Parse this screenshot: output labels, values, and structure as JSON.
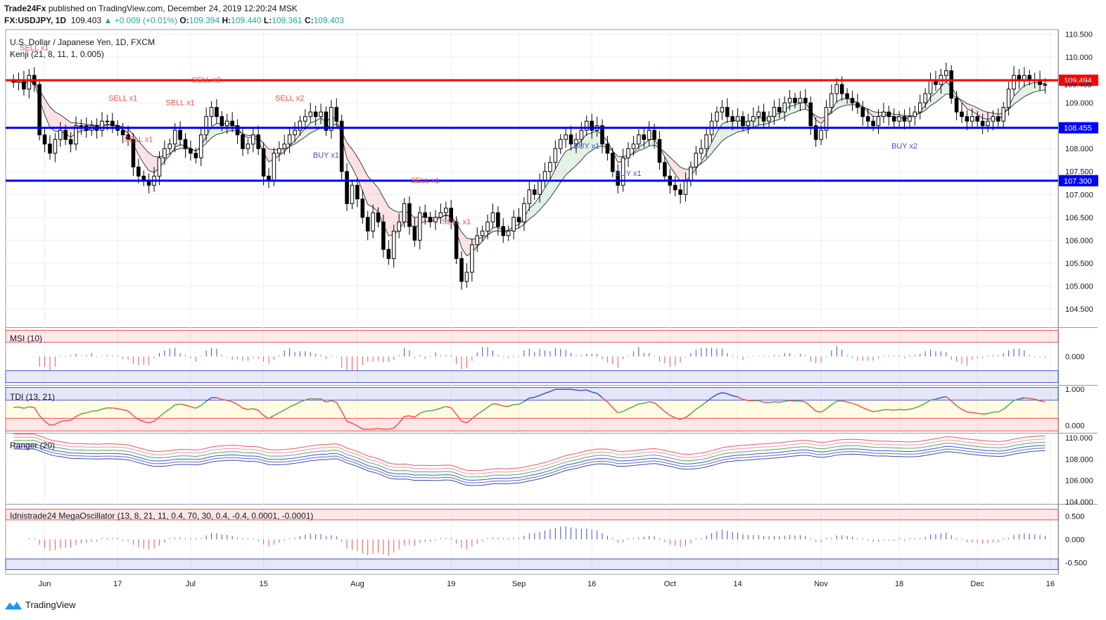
{
  "header": {
    "publisher": "Trade24Fx",
    "published_text": "published on TradingView.com, December 24, 2019 12:20:24 MSK",
    "symbol": "FX:USDJPY, 1D",
    "last": "109.403",
    "change": "▲ +0.009 (+0.01%)",
    "o_label": "O:",
    "o": "109.394",
    "h_label": "H:",
    "h": "109.440",
    "l_label": "L:",
    "l": "109.361",
    "c_label": "C:",
    "c": "109.403"
  },
  "footer": {
    "brand": "TradingView"
  },
  "colors": {
    "up": "#ffffff",
    "down": "#000000",
    "support": "#0000ff",
    "resistance": "#ff0000",
    "sell": "#ef5350",
    "buy": "#3f51d6"
  },
  "chart_data": [
    {
      "type": "candlestick",
      "title": "U.S. Dollar / Japanese Yen, 1D, FXCM",
      "indicator_label": "Kenji (21, 8, 11, 1, 0.005)",
      "ylim": [
        104.1,
        110.6
      ],
      "y_ticks": [
        "110.500",
        "110.000",
        "109.000",
        "108.500",
        "108.000",
        "107.500",
        "107.000",
        "106.500",
        "106.000",
        "105.500",
        "105.000",
        "104.500"
      ],
      "x_ticks": [
        "Jun",
        "17",
        "Jul",
        "15",
        "Aug",
        "19",
        "Sep",
        "16",
        "Oct",
        "14",
        "Nov",
        "18",
        "Dec",
        "16"
      ],
      "x_tick_bars": [
        6,
        20,
        34,
        48,
        66,
        84,
        97,
        111,
        126,
        139,
        155,
        170,
        185,
        199
      ],
      "price_labels": [
        {
          "text": "109.494",
          "value": 109.494,
          "bg": "#ff0000"
        },
        {
          "text": "109.403",
          "value": 109.403,
          "bg": "none"
        },
        {
          "text": "108.455",
          "value": 108.455,
          "bg": "#0000ff"
        },
        {
          "text": "107.300",
          "value": 107.3,
          "bg": "#0000ff"
        }
      ],
      "horizontal_levels": [
        {
          "value": 109.494,
          "color": "#ff0000"
        },
        {
          "value": 108.455,
          "color": "#0000ff"
        },
        {
          "value": 107.3,
          "color": "#0000ff"
        }
      ],
      "closes": [
        109.45,
        109.5,
        109.3,
        109.6,
        109.4,
        108.3,
        108.1,
        107.9,
        108.2,
        108.4,
        108.2,
        108.1,
        108.5,
        108.5,
        108.4,
        108.5,
        108.4,
        108.6,
        108.6,
        108.5,
        108.4,
        108.3,
        108.2,
        107.6,
        107.4,
        107.3,
        107.2,
        107.4,
        107.8,
        108.0,
        108.1,
        108.4,
        108.2,
        108.0,
        107.9,
        107.8,
        108.3,
        108.7,
        108.9,
        108.7,
        108.5,
        108.6,
        108.5,
        108.3,
        108.0,
        108.1,
        108.3,
        108.0,
        107.4,
        107.3,
        107.9,
        108.0,
        108.1,
        108.3,
        108.4,
        108.6,
        108.7,
        108.8,
        108.7,
        108.8,
        108.4,
        108.9,
        108.6,
        107.5,
        106.8,
        107.2,
        106.9,
        106.5,
        106.2,
        106.6,
        106.4,
        105.8,
        105.6,
        106.2,
        106.4,
        106.8,
        106.3,
        106.0,
        106.6,
        106.5,
        106.4,
        106.5,
        106.6,
        106.7,
        106.4,
        105.6,
        105.1,
        105.3,
        105.9,
        106.1,
        106.2,
        106.4,
        106.6,
        106.3,
        106.1,
        106.2,
        106.5,
        106.4,
        106.8,
        107.1,
        107.0,
        107.3,
        107.5,
        107.7,
        108.0,
        108.2,
        108.3,
        108.1,
        108.2,
        108.4,
        108.6,
        108.4,
        108.5,
        108.1,
        107.9,
        107.5,
        107.2,
        107.8,
        108.0,
        108.1,
        108.3,
        108.2,
        108.4,
        108.2,
        107.7,
        107.4,
        107.2,
        107.1,
        107.0,
        107.3,
        107.6,
        107.9,
        108.0,
        108.3,
        108.6,
        108.8,
        108.9,
        108.7,
        108.6,
        108.7,
        108.5,
        108.6,
        108.7,
        108.8,
        108.6,
        108.7,
        108.9,
        108.8,
        109.0,
        109.1,
        109.0,
        109.1,
        109.0,
        108.5,
        108.2,
        108.4,
        108.9,
        109.2,
        109.4,
        109.2,
        109.1,
        109.0,
        108.9,
        108.7,
        108.6,
        108.5,
        108.7,
        108.8,
        108.7,
        108.6,
        108.7,
        108.6,
        108.7,
        108.8,
        109.0,
        109.2,
        109.5,
        109.4,
        109.6,
        109.7,
        109.1,
        108.8,
        108.7,
        108.6,
        108.7,
        108.6,
        108.5,
        108.6,
        108.7,
        108.6,
        108.9,
        109.3,
        109.6,
        109.5,
        109.6,
        109.5,
        109.5,
        109.4,
        109.4
      ],
      "annotations": [
        {
          "text": "SELL x1",
          "bar": 4
        },
        {
          "text": "SELL x1",
          "bar": 21
        },
        {
          "text": "SELL x1",
          "bar": 24
        },
        {
          "text": "SELL x1",
          "bar": 32
        },
        {
          "text": "SELL x2",
          "bar": 37
        },
        {
          "text": "SELL x2",
          "bar": 53
        },
        {
          "text": "BUY x1",
          "bar": 60
        },
        {
          "text": "SELL x1",
          "bar": 79
        },
        {
          "text": "SELL x1",
          "bar": 85
        },
        {
          "text": "BUY x1",
          "bar": 110
        },
        {
          "text": "BUY x1",
          "bar": 118
        },
        {
          "text": "BUY x2",
          "bar": 171
        }
      ]
    },
    {
      "type": "bar",
      "title": "MSI (10)",
      "y_ticks": [
        "0.000"
      ],
      "ylim": [
        -0.6,
        0.6
      ]
    },
    {
      "type": "line",
      "title": "TDI (13, 21)",
      "y_ticks": [
        "1.000",
        "0.000"
      ],
      "ylim": [
        -0.2,
        1.1
      ]
    },
    {
      "type": "line",
      "title": "Ranger (20)",
      "y_ticks": [
        "110.000",
        "108.000",
        "106.000",
        "104.000"
      ],
      "ylim": [
        103.8,
        110.4
      ]
    },
    {
      "type": "bar",
      "title": "Idnistrade24 MegaOscillator (13, 8, 21, 11, 0.4, 70, 30, 0.4, -0.4, 0.0001, -0.0001)",
      "y_ticks": [
        "0.500",
        "0.000",
        "-0.500"
      ],
      "ylim": [
        -0.75,
        0.75
      ]
    }
  ]
}
